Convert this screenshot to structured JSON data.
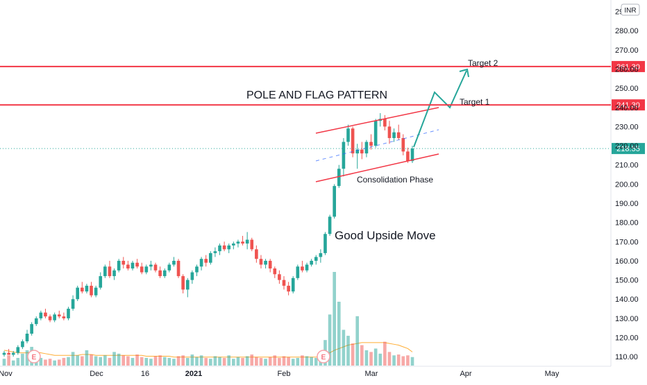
{
  "currency": "INR",
  "chart_data": {
    "type": "candlestick",
    "yaxis": {
      "ticks": [
        "110.00",
        "120.00",
        "130.00",
        "140.00",
        "150.00",
        "160.00",
        "170.00",
        "180.00",
        "190.00",
        "200.00",
        "210.00",
        "220.00",
        "230.00",
        "240.00",
        "250.00",
        "260.00",
        "270.00",
        "280.00",
        "290.00"
      ],
      "range": [
        105,
        296
      ]
    },
    "xaxis": {
      "ticks": [
        {
          "label": "Nov",
          "bold": false
        },
        {
          "label": "Dec",
          "bold": false
        },
        {
          "label": "16",
          "bold": false
        },
        {
          "label": "2021",
          "bold": true
        },
        {
          "label": "Feb",
          "bold": false
        },
        {
          "label": "Mar",
          "bold": false
        },
        {
          "label": "Apr",
          "bold": false
        },
        {
          "label": "May",
          "bold": false
        }
      ]
    },
    "price_levels": [
      {
        "label": "261.30",
        "value": 261.3,
        "color": "#f23645"
      },
      {
        "label": "241.30",
        "value": 241.3,
        "color": "#f23645"
      }
    ],
    "last_price": {
      "label": "218.55",
      "value": 218.55,
      "color": "#26a69a"
    },
    "annotations": {
      "title": "POLE AND FLAG PATTERN",
      "target2": "Target 2",
      "target1": "Target 1",
      "consolidation": "Consolidation Phase",
      "upside": "Good Upside Move"
    },
    "earnings_markers": [
      "E",
      "E"
    ],
    "candles": [
      [
        111,
        113,
        110,
        112
      ],
      [
        112,
        114,
        111,
        111
      ],
      [
        111,
        113,
        110,
        112
      ],
      [
        112,
        116,
        111,
        115
      ],
      [
        115,
        119,
        114,
        118
      ],
      [
        118,
        124,
        117,
        122
      ],
      [
        122,
        128,
        121,
        127
      ],
      [
        127,
        131,
        126,
        130
      ],
      [
        130,
        134,
        129,
        133
      ],
      [
        133,
        135,
        130,
        131
      ],
      [
        131,
        132,
        128,
        129
      ],
      [
        129,
        133,
        128,
        132
      ],
      [
        132,
        134,
        130,
        131
      ],
      [
        131,
        133,
        129,
        130
      ],
      [
        130,
        136,
        129,
        135
      ],
      [
        135,
        142,
        134,
        140
      ],
      [
        140,
        147,
        139,
        146
      ],
      [
        146,
        149,
        143,
        144
      ],
      [
        144,
        148,
        143,
        147
      ],
      [
        147,
        149,
        141,
        142
      ],
      [
        142,
        147,
        141,
        146
      ],
      [
        146,
        154,
        145,
        152
      ],
      [
        152,
        158,
        151,
        157
      ],
      [
        157,
        160,
        151,
        152
      ],
      [
        152,
        156,
        150,
        155
      ],
      [
        155,
        161,
        154,
        160
      ],
      [
        160,
        162,
        156,
        158
      ],
      [
        158,
        160,
        155,
        156
      ],
      [
        156,
        160,
        155,
        159
      ],
      [
        159,
        161,
        156,
        157
      ],
      [
        157,
        159,
        153,
        154
      ],
      [
        154,
        158,
        153,
        157
      ],
      [
        157,
        160,
        155,
        158
      ],
      [
        158,
        159,
        154,
        155
      ],
      [
        155,
        157,
        151,
        152
      ],
      [
        152,
        156,
        151,
        155
      ],
      [
        155,
        159,
        154,
        158
      ],
      [
        158,
        162,
        157,
        160
      ],
      [
        160,
        161,
        151,
        152
      ],
      [
        152,
        153,
        143,
        145
      ],
      [
        145,
        151,
        141,
        150
      ],
      [
        150,
        155,
        148,
        154
      ],
      [
        154,
        158,
        152,
        157
      ],
      [
        157,
        162,
        155,
        161
      ],
      [
        161,
        163,
        157,
        159
      ],
      [
        159,
        165,
        158,
        164
      ],
      [
        164,
        167,
        162,
        165
      ],
      [
        165,
        169,
        163,
        168
      ],
      [
        168,
        170,
        165,
        166
      ],
      [
        166,
        169,
        164,
        168
      ],
      [
        168,
        170,
        166,
        169
      ],
      [
        169,
        171,
        167,
        170
      ],
      [
        170,
        173,
        168,
        169
      ],
      [
        169,
        175,
        166,
        171
      ],
      [
        171,
        172,
        165,
        166
      ],
      [
        166,
        168,
        159,
        161
      ],
      [
        161,
        163,
        156,
        158
      ],
      [
        158,
        161,
        156,
        160
      ],
      [
        160,
        161,
        154,
        156
      ],
      [
        156,
        157,
        151,
        153
      ],
      [
        153,
        155,
        148,
        150
      ],
      [
        150,
        152,
        145,
        147
      ],
      [
        147,
        149,
        142,
        144
      ],
      [
        144,
        152,
        143,
        151
      ],
      [
        151,
        158,
        150,
        157
      ],
      [
        157,
        160,
        154,
        155
      ],
      [
        155,
        159,
        154,
        158
      ],
      [
        158,
        161,
        157,
        160
      ],
      [
        160,
        163,
        158,
        162
      ],
      [
        162,
        166,
        159,
        164
      ],
      [
        164,
        175,
        163,
        174
      ],
      [
        174,
        184,
        173,
        183
      ],
      [
        183,
        200,
        182,
        199
      ],
      [
        199,
        210,
        198,
        208
      ],
      [
        208,
        224,
        204,
        222
      ],
      [
        222,
        231,
        220,
        229
      ],
      [
        229,
        230,
        214,
        216
      ],
      [
        216,
        221,
        208,
        218
      ],
      [
        218,
        222,
        213,
        216
      ],
      [
        216,
        223,
        214,
        222
      ],
      [
        222,
        226,
        218,
        220
      ],
      [
        220,
        234,
        219,
        233
      ],
      [
        233,
        237,
        230,
        234
      ],
      [
        234,
        236,
        228,
        230
      ],
      [
        230,
        233,
        221,
        224
      ],
      [
        224,
        229,
        222,
        227
      ],
      [
        227,
        231,
        223,
        224
      ],
      [
        224,
        226,
        215,
        217
      ],
      [
        217,
        219,
        211,
        212
      ],
      [
        212,
        220,
        211,
        218.55
      ]
    ],
    "volume": [
      8,
      12,
      6,
      9,
      14,
      18,
      22,
      10,
      9,
      7,
      8,
      6,
      7,
      9,
      10,
      16,
      12,
      11,
      18,
      13,
      11,
      10,
      12,
      9,
      16,
      14,
      12,
      11,
      9,
      13,
      10,
      9,
      8,
      11,
      12,
      10,
      9,
      8,
      11,
      12,
      9,
      13,
      10,
      12,
      9,
      8,
      11,
      10,
      9,
      12,
      8,
      10,
      9,
      11,
      13,
      10,
      9,
      8,
      10,
      12,
      9,
      11,
      10,
      8,
      9,
      12,
      11,
      10,
      9,
      14,
      30,
      60,
      110,
      75,
      42,
      35,
      26,
      58,
      24,
      18,
      16,
      20,
      14,
      28,
      16,
      12,
      13,
      11,
      12,
      10
    ],
    "volume_ma": [
      18,
      17,
      16,
      15,
      15,
      15,
      16,
      16,
      15,
      14,
      13,
      12,
      12,
      12,
      12,
      12,
      12,
      13,
      13,
      13,
      12,
      12,
      12,
      12,
      12,
      12,
      12,
      12,
      12,
      12,
      12,
      11,
      11,
      11,
      11,
      11,
      11,
      10,
      10,
      10,
      10,
      10,
      10,
      10,
      10,
      10,
      10,
      10,
      10,
      10,
      10,
      10,
      10,
      10,
      10,
      10,
      10,
      10,
      10,
      10,
      10,
      10,
      10,
      10,
      10,
      10,
      10,
      10,
      10,
      11,
      13,
      15,
      18,
      20,
      22,
      24,
      25,
      26,
      27,
      27,
      27,
      27,
      27,
      27,
      26,
      25,
      24,
      22,
      20,
      16
    ]
  }
}
